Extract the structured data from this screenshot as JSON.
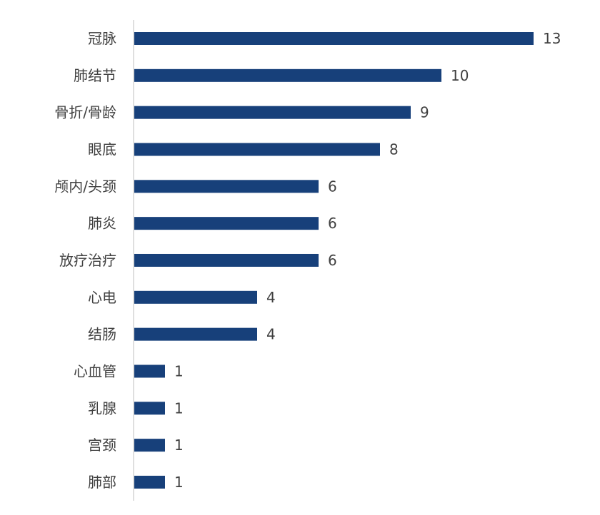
{
  "chart_data": {
    "type": "bar",
    "orientation": "horizontal",
    "categories": [
      "冠脉",
      "肺结节",
      "骨折/骨龄",
      "眼底",
      "颅内/头颈",
      "肺炎",
      "放疗治疗",
      "心电",
      "结肠",
      "心血管",
      "乳腺",
      "宫颈",
      "肺部"
    ],
    "values": [
      13,
      10,
      9,
      8,
      6,
      6,
      6,
      4,
      4,
      1,
      1,
      1,
      1
    ],
    "title": "",
    "xlabel": "",
    "ylabel": "",
    "data_labels": true,
    "grid": false,
    "legend": "none",
    "bar_color": "#17407A",
    "label_color": "#404040",
    "axis_color": "#BFBFBF"
  }
}
